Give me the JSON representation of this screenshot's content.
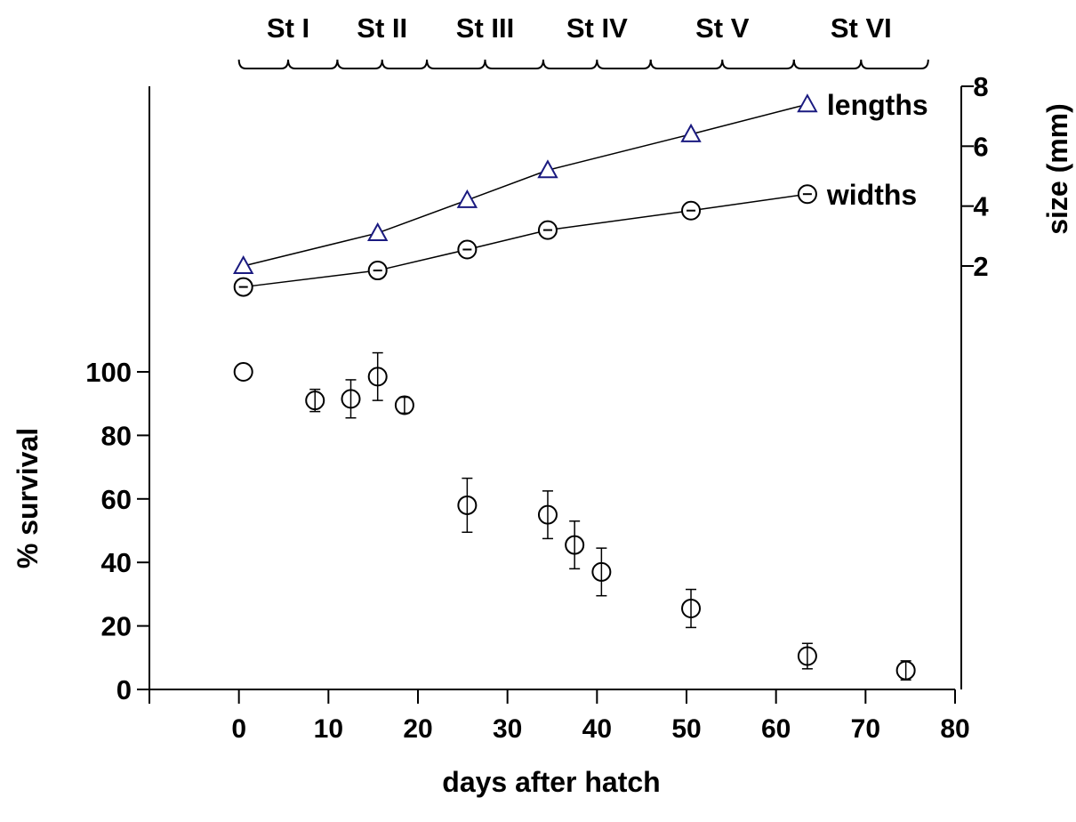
{
  "chart_data": {
    "type": "scatter",
    "xlabel": "days after hatch",
    "x_ticks": [
      0,
      10,
      20,
      30,
      40,
      50,
      60,
      70,
      80
    ],
    "xlim": [
      -10,
      80
    ],
    "left_axis": {
      "label": "% survival",
      "ylim": [
        0,
        100
      ],
      "ticks": [
        0,
        20,
        40,
        60,
        80,
        100
      ]
    },
    "right_axis": {
      "label": "size (mm)",
      "ylim": [
        0,
        8
      ],
      "ticks": [
        2,
        4,
        6,
        8
      ]
    },
    "stages": [
      {
        "label": "St I",
        "start": 0,
        "end": 11
      },
      {
        "label": "St II",
        "start": 11,
        "end": 21
      },
      {
        "label": "St III",
        "start": 21,
        "end": 34
      },
      {
        "label": "St IV",
        "start": 34,
        "end": 46
      },
      {
        "label": "St V",
        "start": 46,
        "end": 62
      },
      {
        "label": "St VI",
        "start": 62,
        "end": 77
      }
    ],
    "survival": {
      "axis": "left",
      "marker": "circle",
      "points": [
        {
          "x": 0.5,
          "y": 100,
          "err": 0
        },
        {
          "x": 8.5,
          "y": 91,
          "err": 3.5
        },
        {
          "x": 12.5,
          "y": 91.5,
          "err": 6
        },
        {
          "x": 15.5,
          "y": 98.5,
          "err": 7.5
        },
        {
          "x": 18.5,
          "y": 89.5,
          "err": 2.5
        },
        {
          "x": 25.5,
          "y": 58,
          "err": 8.5
        },
        {
          "x": 34.5,
          "y": 55,
          "err": 7.5
        },
        {
          "x": 37.5,
          "y": 45.5,
          "err": 7.5
        },
        {
          "x": 40.5,
          "y": 37,
          "err": 7.5
        },
        {
          "x": 50.5,
          "y": 25.5,
          "err": 6
        },
        {
          "x": 63.5,
          "y": 10.5,
          "err": 4
        },
        {
          "x": 74.5,
          "y": 6,
          "err": 3
        }
      ]
    },
    "series": [
      {
        "name": "lengths",
        "axis": "right",
        "marker": "triangle",
        "color": "#1a1a80",
        "points": [
          {
            "x": 0.5,
            "y": 2.0
          },
          {
            "x": 15.5,
            "y": 3.1
          },
          {
            "x": 25.5,
            "y": 4.2
          },
          {
            "x": 34.5,
            "y": 5.2
          },
          {
            "x": 50.5,
            "y": 6.4
          },
          {
            "x": 63.5,
            "y": 7.4
          }
        ]
      },
      {
        "name": "widths",
        "axis": "right",
        "marker": "circle",
        "color": "#000000",
        "points": [
          {
            "x": 0.5,
            "y": 1.3
          },
          {
            "x": 15.5,
            "y": 1.85
          },
          {
            "x": 25.5,
            "y": 2.55
          },
          {
            "x": 34.5,
            "y": 3.2
          },
          {
            "x": 50.5,
            "y": 3.85
          },
          {
            "x": 63.5,
            "y": 4.4
          }
        ]
      }
    ]
  }
}
